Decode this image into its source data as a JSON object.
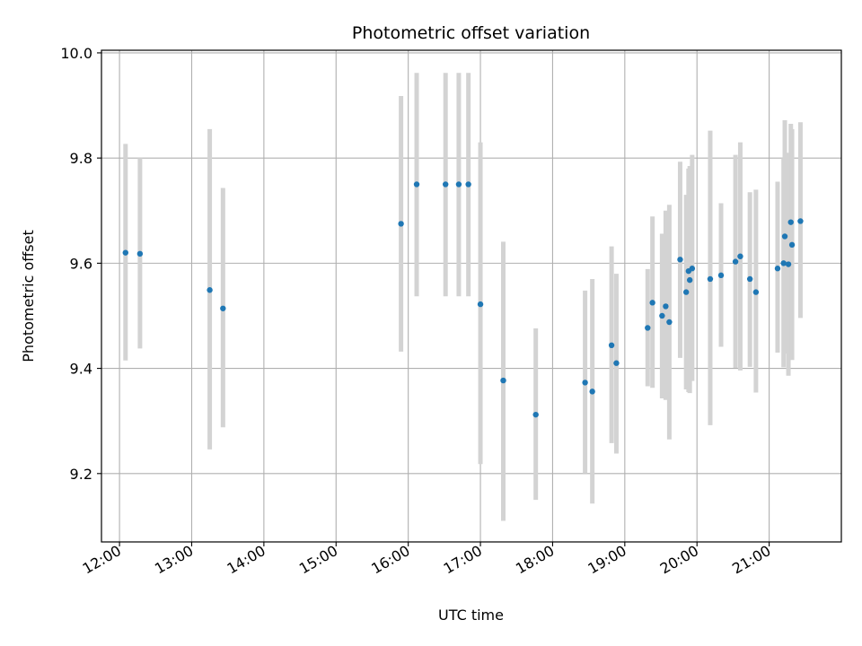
{
  "chart_data": {
    "type": "scatter",
    "title": "Photometric offset variation",
    "xlabel": "UTC time",
    "ylabel": "Photometric offset",
    "grid": true,
    "xlim": [
      "11:45",
      "22:00"
    ],
    "ylim": [
      9.07,
      10.005
    ],
    "x_ticks": [
      "12:00",
      "13:00",
      "14:00",
      "15:00",
      "16:00",
      "17:00",
      "18:00",
      "19:00",
      "20:00",
      "21:00"
    ],
    "y_ticks": [
      9.2,
      9.4,
      9.6,
      9.8,
      10.0
    ],
    "y_tick_labels": [
      "9.2",
      "9.4",
      "9.6",
      "9.8",
      "10.0"
    ],
    "colors": {
      "points": "#1f77b4",
      "errorbars": "#d3d3d3",
      "grid": "#b0b0b0",
      "frame": "#000000"
    },
    "series": [
      {
        "points": [
          {
            "x": "12:05",
            "y": 9.62,
            "lo": 9.415,
            "hi": 9.827
          },
          {
            "x": "12:17",
            "y": 9.618,
            "lo": 9.438,
            "hi": 9.8
          },
          {
            "x": "13:15",
            "y": 9.549,
            "lo": 9.246,
            "hi": 9.855
          },
          {
            "x": "13:26",
            "y": 9.514,
            "lo": 9.288,
            "hi": 9.743
          },
          {
            "x": "15:54",
            "y": 9.675,
            "lo": 9.432,
            "hi": 9.918
          },
          {
            "x": "16:07",
            "y": 9.75,
            "lo": 9.537,
            "hi": 9.962
          },
          {
            "x": "16:31",
            "y": 9.75,
            "lo": 9.537,
            "hi": 9.962
          },
          {
            "x": "16:42",
            "y": 9.75,
            "lo": 9.537,
            "hi": 9.962
          },
          {
            "x": "16:50",
            "y": 9.75,
            "lo": 9.537,
            "hi": 9.962
          },
          {
            "x": "17:00",
            "y": 9.522,
            "lo": 9.218,
            "hi": 9.83
          },
          {
            "x": "17:19",
            "y": 9.377,
            "lo": 9.11,
            "hi": 9.641
          },
          {
            "x": "17:46",
            "y": 9.312,
            "lo": 9.15,
            "hi": 9.476
          },
          {
            "x": "18:27",
            "y": 9.373,
            "lo": 9.2,
            "hi": 9.548
          },
          {
            "x": "18:33",
            "y": 9.356,
            "lo": 9.143,
            "hi": 9.57
          },
          {
            "x": "18:49",
            "y": 9.444,
            "lo": 9.258,
            "hi": 9.632
          },
          {
            "x": "18:53",
            "y": 9.41,
            "lo": 9.238,
            "hi": 9.58
          },
          {
            "x": "19:19",
            "y": 9.477,
            "lo": 9.366,
            "hi": 9.589
          },
          {
            "x": "19:23",
            "y": 9.525,
            "lo": 9.363,
            "hi": 9.689
          },
          {
            "x": "19:31",
            "y": 9.5,
            "lo": 9.343,
            "hi": 9.656
          },
          {
            "x": "19:34",
            "y": 9.518,
            "lo": 9.34,
            "hi": 9.7
          },
          {
            "x": "19:37",
            "y": 9.488,
            "lo": 9.265,
            "hi": 9.711
          },
          {
            "x": "19:46",
            "y": 9.607,
            "lo": 9.42,
            "hi": 9.793
          },
          {
            "x": "19:51",
            "y": 9.545,
            "lo": 9.36,
            "hi": 9.73
          },
          {
            "x": "19:53",
            "y": 9.585,
            "lo": 9.355,
            "hi": 9.78
          },
          {
            "x": "19:54",
            "y": 9.568,
            "lo": 9.353,
            "hi": 9.785
          },
          {
            "x": "19:56",
            "y": 9.59,
            "lo": 9.376,
            "hi": 9.806
          },
          {
            "x": "20:11",
            "y": 9.57,
            "lo": 9.292,
            "hi": 9.852
          },
          {
            "x": "20:20",
            "y": 9.577,
            "lo": 9.441,
            "hi": 9.714
          },
          {
            "x": "20:32",
            "y": 9.603,
            "lo": 9.401,
            "hi": 9.806
          },
          {
            "x": "20:36",
            "y": 9.613,
            "lo": 9.396,
            "hi": 9.83
          },
          {
            "x": "20:44",
            "y": 9.57,
            "lo": 9.403,
            "hi": 9.735
          },
          {
            "x": "20:49",
            "y": 9.545,
            "lo": 9.354,
            "hi": 9.74
          },
          {
            "x": "21:07",
            "y": 9.59,
            "lo": 9.43,
            "hi": 9.755
          },
          {
            "x": "21:12",
            "y": 9.6,
            "lo": 9.402,
            "hi": 9.8
          },
          {
            "x": "21:13",
            "y": 9.651,
            "lo": 9.428,
            "hi": 9.872
          },
          {
            "x": "21:16",
            "y": 9.598,
            "lo": 9.386,
            "hi": 9.81
          },
          {
            "x": "21:18",
            "y": 9.678,
            "lo": 9.486,
            "hi": 9.865
          },
          {
            "x": "21:19",
            "y": 9.635,
            "lo": 9.416,
            "hi": 9.855
          },
          {
            "x": "21:26",
            "y": 9.68,
            "lo": 9.496,
            "hi": 9.868
          }
        ]
      }
    ]
  }
}
